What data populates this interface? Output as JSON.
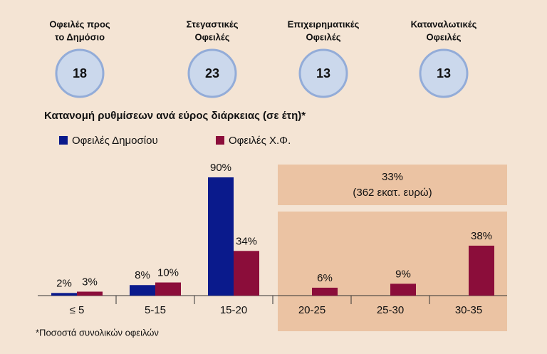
{
  "summary_cards": [
    {
      "label": [
        "Οφειλές προς",
        "το Δημόσιο"
      ],
      "value": 18
    },
    {
      "label": [
        "Στεγαστικές",
        "Οφειλές"
      ],
      "value": 23
    },
    {
      "label": [
        "Επιχειρηματικές",
        "Οφειλές"
      ],
      "value": 13
    },
    {
      "label": [
        "Καταναλωτικές",
        "Οφειλές"
      ],
      "value": 13
    }
  ],
  "chart_data": {
    "type": "bar",
    "title": "Κατανομή ρυθμίσεων ανά εύρος διάρκειας (σε έτη)*",
    "categories": [
      "≤ 5",
      "5-15",
      "15-20",
      "20-25",
      "25-30",
      "30-35"
    ],
    "series": [
      {
        "name": "Οφειλές Δημοσίου",
        "color": "#0a1a8c",
        "values": [
          2,
          8,
          90,
          null,
          null,
          null
        ],
        "value_labels": [
          "2%",
          "8%",
          "90%",
          null,
          null,
          null
        ]
      },
      {
        "name": "Οφειλές Χ.Φ.",
        "color": "#8b0d3a",
        "values": [
          3,
          10,
          34,
          6,
          9,
          38
        ],
        "value_labels": [
          "3%",
          "10%",
          "34%",
          "6%",
          "9%",
          "38%"
        ]
      }
    ],
    "annotation": [
      "33%",
      "(362 εκατ. ευρώ)"
    ],
    "footnote": "*Ποσοστά συνολικών οφειλών"
  }
}
